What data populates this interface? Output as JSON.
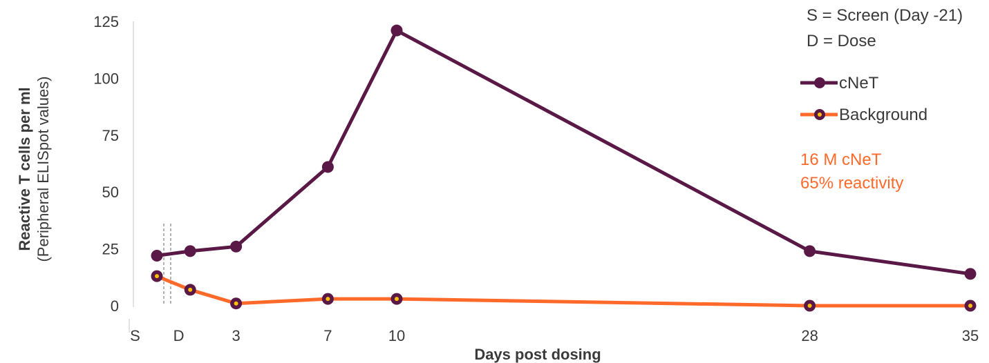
{
  "chart_data": {
    "type": "line",
    "xlabel": "Days post dosing",
    "ylabel": "Reactive T cells per ml",
    "ylabel_sub": "(Peripheral ELISpot values)",
    "ylim": [
      0,
      125
    ],
    "yticks": [
      0,
      25,
      50,
      75,
      100,
      125
    ],
    "x_ticks": [
      {
        "label": "S",
        "x": -1.4
      },
      {
        "label": "D",
        "x": 0.5
      },
      {
        "label": "3",
        "x": 3
      },
      {
        "label": "7",
        "x": 7
      },
      {
        "label": "10",
        "x": 10
      },
      {
        "label": "28",
        "x": 28
      },
      {
        "label": "35",
        "x": 35
      }
    ],
    "x_labels": {
      "screen": "S",
      "dose": "D"
    },
    "series": [
      {
        "name": "cNeT",
        "color": "#5a1846",
        "points": [
          {
            "x": "S",
            "y": 22
          },
          {
            "x": 1,
            "y": 24
          },
          {
            "x": 3,
            "y": 26
          },
          {
            "x": 7,
            "y": 61
          },
          {
            "x": 10,
            "y": 121
          },
          {
            "x": 28,
            "y": 24
          },
          {
            "x": 35,
            "y": 14
          }
        ]
      },
      {
        "name": "Background",
        "color": "#ff6a2b",
        "marker_inner": "#ffc000",
        "points": [
          {
            "x": "S",
            "y": 13
          },
          {
            "x": 1,
            "y": 7
          },
          {
            "x": 3,
            "y": 1
          },
          {
            "x": 7,
            "y": 3
          },
          {
            "x": 10,
            "y": 3
          },
          {
            "x": 28,
            "y": 0
          },
          {
            "x": 35,
            "y": 0
          }
        ]
      }
    ],
    "legend_position": "top-right",
    "notes": [
      "S = Screen (Day -21)",
      "D = Dose"
    ],
    "annotation": {
      "lines": [
        "16 M cNeT",
        "65% reactivity"
      ],
      "color": "#ff6a2b"
    },
    "grid": false
  }
}
